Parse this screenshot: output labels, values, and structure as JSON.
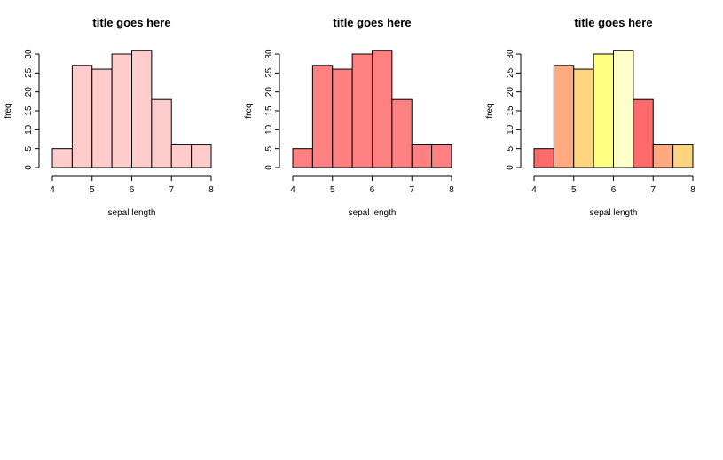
{
  "chart_data": [
    {
      "type": "bar",
      "panel": "left",
      "title": "title goes here",
      "xlabel": "sepal length",
      "ylabel": "freq",
      "bin_edges": [
        4,
        4.5,
        5,
        5.5,
        6,
        6.5,
        7,
        7.5,
        8
      ],
      "values": [
        5,
        27,
        26,
        30,
        31,
        18,
        6,
        6
      ],
      "xlim": [
        4,
        8
      ],
      "ylim": [
        0,
        30
      ],
      "x_ticks": [
        "4",
        "5",
        "6",
        "7",
        "8"
      ],
      "x_tick_values": [
        4,
        5,
        6,
        7,
        8
      ],
      "y_ticks": [
        "0",
        "5",
        "10",
        "15",
        "20",
        "25",
        "30"
      ],
      "y_tick_values": [
        0,
        5,
        10,
        15,
        20,
        25,
        30
      ],
      "colors": [
        "#FFCCCC",
        "#FFCCCC",
        "#FFCCCC",
        "#FFCCCC",
        "#FFCCCC",
        "#FFCCCC",
        "#FFCCCC",
        "#FFCCCC"
      ]
    },
    {
      "type": "bar",
      "panel": "middle",
      "title": "title goes here",
      "xlabel": "sepal length",
      "ylabel": "freq",
      "bin_edges": [
        4,
        4.5,
        5,
        5.5,
        6,
        6.5,
        7,
        7.5,
        8
      ],
      "values": [
        5,
        27,
        26,
        30,
        31,
        18,
        6,
        6
      ],
      "xlim": [
        4,
        8
      ],
      "ylim": [
        0,
        30
      ],
      "x_ticks": [
        "4",
        "5",
        "6",
        "7",
        "8"
      ],
      "x_tick_values": [
        4,
        5,
        6,
        7,
        8
      ],
      "y_ticks": [
        "0",
        "5",
        "10",
        "15",
        "20",
        "25",
        "30"
      ],
      "y_tick_values": [
        0,
        5,
        10,
        15,
        20,
        25,
        30
      ],
      "colors": [
        "#FF8080",
        "#FF8080",
        "#FF8080",
        "#FF8080",
        "#FF8080",
        "#FF8080",
        "#FF8080",
        "#FF8080"
      ]
    },
    {
      "type": "bar",
      "panel": "right",
      "title": "title goes here",
      "xlabel": "sepal length",
      "ylabel": "freq",
      "bin_edges": [
        4,
        4.5,
        5,
        5.5,
        6,
        6.5,
        7,
        7.5,
        8
      ],
      "values": [
        5,
        27,
        26,
        30,
        31,
        18,
        6,
        6
      ],
      "xlim": [
        4,
        8
      ],
      "ylim": [
        0,
        30
      ],
      "x_ticks": [
        "4",
        "5",
        "6",
        "7",
        "8"
      ],
      "x_tick_values": [
        4,
        5,
        6,
        7,
        8
      ],
      "y_ticks": [
        "0",
        "5",
        "10",
        "15",
        "20",
        "25",
        "30"
      ],
      "y_tick_values": [
        0,
        5,
        10,
        15,
        20,
        25,
        30
      ],
      "colors": [
        "#FF6B6B",
        "#FFAA80",
        "#FFD480",
        "#FFFF80",
        "#FFFFCC",
        "#FF6B6B",
        "#FFAA80",
        "#FFD480"
      ]
    }
  ]
}
